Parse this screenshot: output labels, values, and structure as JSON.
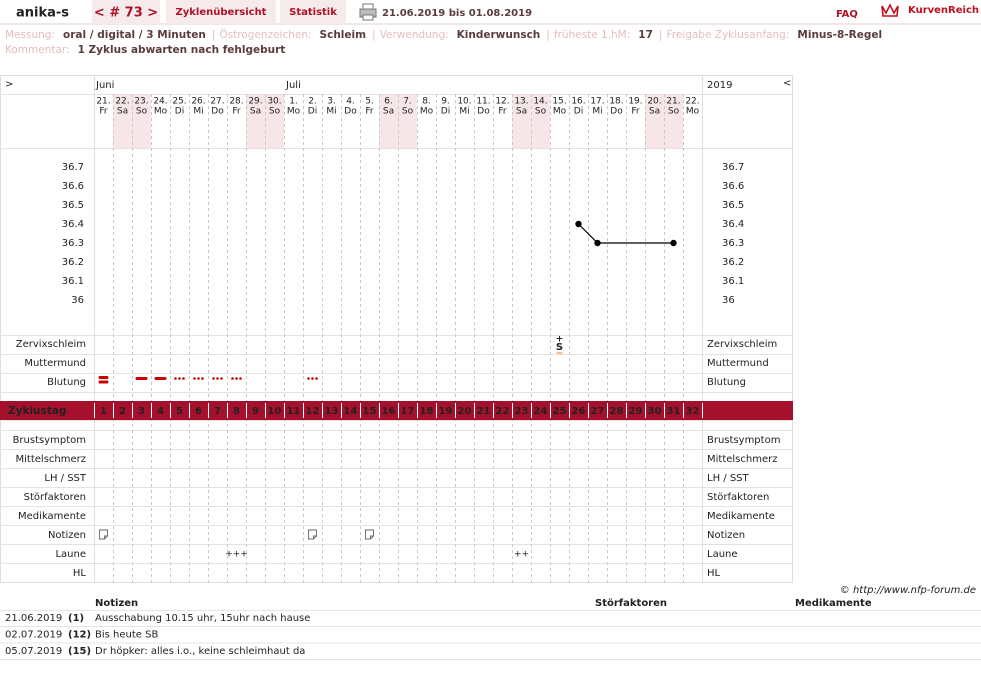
{
  "header": {
    "user": "anika-s",
    "cycle_nav": "< # 73 >",
    "tabs": [
      "Zyklenübersicht",
      "Statistik"
    ],
    "period": "21.06.2019 bis 01.08.2019",
    "faq": "FAQ",
    "brand": "KurvenReich"
  },
  "info": {
    "items": [
      {
        "label": "Messung:",
        "value": "oral / digital / 3 Minuten"
      },
      {
        "label": "Östrogenzeichen:",
        "value": "Schleim"
      },
      {
        "label": "Verwendung:",
        "value": "Kinderwunsch"
      },
      {
        "label": "früheste 1.hM:",
        "value": "17"
      },
      {
        "label": "Freigabe Zyklusanfang:",
        "value": "Minus-8-Regel"
      }
    ],
    "separator": "|",
    "comment_label": "Kommentar:",
    "comment": "1 Zyklus abwarten nach fehlgeburt"
  },
  "chart": {
    "nav_left": ">",
    "nav_right": "<",
    "year": "2019",
    "months": [
      {
        "name": "Juni",
        "day": 1
      },
      {
        "name": "Juli",
        "day": 11
      }
    ],
    "days": [
      {
        "d": "21.",
        "w": "Fr",
        "n": 1,
        "weekend": false
      },
      {
        "d": "22.",
        "w": "Sa",
        "n": 2,
        "weekend": true
      },
      {
        "d": "23.",
        "w": "So",
        "n": 3,
        "weekend": true
      },
      {
        "d": "24.",
        "w": "Mo",
        "n": 4,
        "weekend": false
      },
      {
        "d": "25.",
        "w": "Di",
        "n": 5,
        "weekend": false
      },
      {
        "d": "26.",
        "w": "Mi",
        "n": 6,
        "weekend": false
      },
      {
        "d": "27.",
        "w": "Do",
        "n": 7,
        "weekend": false
      },
      {
        "d": "28.",
        "w": "Fr",
        "n": 8,
        "weekend": false
      },
      {
        "d": "29.",
        "w": "Sa",
        "n": 9,
        "weekend": true
      },
      {
        "d": "30.",
        "w": "So",
        "n": 10,
        "weekend": true
      },
      {
        "d": "1.",
        "w": "Mo",
        "n": 11,
        "weekend": false
      },
      {
        "d": "2.",
        "w": "Di",
        "n": 12,
        "weekend": false
      },
      {
        "d": "3.",
        "w": "Mi",
        "n": 13,
        "weekend": false
      },
      {
        "d": "4.",
        "w": "Do",
        "n": 14,
        "weekend": false
      },
      {
        "d": "5.",
        "w": "Fr",
        "n": 15,
        "weekend": false
      },
      {
        "d": "6.",
        "w": "Sa",
        "n": 16,
        "weekend": true
      },
      {
        "d": "7.",
        "w": "So",
        "n": 17,
        "weekend": true
      },
      {
        "d": "8.",
        "w": "Mo",
        "n": 18,
        "weekend": false
      },
      {
        "d": "9.",
        "w": "Di",
        "n": 19,
        "weekend": false
      },
      {
        "d": "10.",
        "w": "Mi",
        "n": 20,
        "weekend": false
      },
      {
        "d": "11.",
        "w": "Do",
        "n": 21,
        "weekend": false
      },
      {
        "d": "12.",
        "w": "Fr",
        "n": 22,
        "weekend": false
      },
      {
        "d": "13.",
        "w": "Sa",
        "n": 23,
        "weekend": true
      },
      {
        "d": "14.",
        "w": "So",
        "n": 24,
        "weekend": true
      },
      {
        "d": "15.",
        "w": "Mo",
        "n": 25,
        "weekend": false
      },
      {
        "d": "16.",
        "w": "Di",
        "n": 26,
        "weekend": false
      },
      {
        "d": "17.",
        "w": "Mi",
        "n": 27,
        "weekend": false
      },
      {
        "d": "18.",
        "w": "Do",
        "n": 28,
        "weekend": false
      },
      {
        "d": "19.",
        "w": "Fr",
        "n": 29,
        "weekend": false
      },
      {
        "d": "20.",
        "w": "Sa",
        "n": 30,
        "weekend": true
      },
      {
        "d": "21.",
        "w": "So",
        "n": 31,
        "weekend": true
      },
      {
        "d": "22.",
        "w": "Mo",
        "n": 32,
        "weekend": false
      }
    ],
    "upper_rows": [
      {
        "label": "Zervixschleim",
        "color": "#e08a00"
      },
      {
        "label": "Muttermund",
        "color": "#5064c8"
      },
      {
        "label": "Blutung",
        "color": "#000000"
      }
    ],
    "cycle_label": "Zyklustag",
    "lower_rows": [
      "Brustsymptom",
      "Mittelschmerz",
      "LH / SST",
      "Störfaktoren",
      "Medikamente",
      "Notizen",
      "Laune",
      "HL"
    ],
    "cervix": [
      {
        "day": 25,
        "sign": "+",
        "symbol": "S"
      }
    ],
    "bleeding": [
      {
        "day": 1,
        "level": "heavy"
      },
      {
        "day": 3,
        "level": "strong"
      },
      {
        "day": 4,
        "level": "strong"
      },
      {
        "day": 5,
        "level": "light"
      },
      {
        "day": 6,
        "level": "light"
      },
      {
        "day": 7,
        "level": "light"
      },
      {
        "day": 8,
        "level": "light"
      },
      {
        "day": 12,
        "level": "light"
      }
    ],
    "note_days": [
      1,
      12,
      15
    ],
    "mood": [
      {
        "day": 8,
        "text": "+++"
      },
      {
        "day": 23,
        "text": "++"
      }
    ]
  },
  "chart_data": {
    "type": "line",
    "x": [
      26,
      27,
      31
    ],
    "values": [
      36.4,
      36.3,
      36.3
    ],
    "color": "#000000",
    "xlim": [
      0.5,
      32.5
    ],
    "ylim": [
      35.8,
      36.8
    ],
    "yticks": [
      36.7,
      36.6,
      36.5,
      36.4,
      36.3,
      36.2,
      36.1,
      36
    ]
  },
  "notes_table": {
    "copyright": "© http://www.nfp-forum.de",
    "headers": [
      "Notizen",
      "Störfaktoren",
      "Medikamente"
    ],
    "rows": [
      {
        "date": "21.06.2019",
        "cycle_day": "(1)",
        "note": "Ausschabung 10.15 uhr, 15uhr nach hause"
      },
      {
        "date": "02.07.2019",
        "cycle_day": "(12)",
        "note": "Bis heute SB"
      },
      {
        "date": "05.07.2019",
        "cycle_day": "(15)",
        "note": "Dr höpker: alles i.o., keine schleimhaut da"
      }
    ]
  }
}
